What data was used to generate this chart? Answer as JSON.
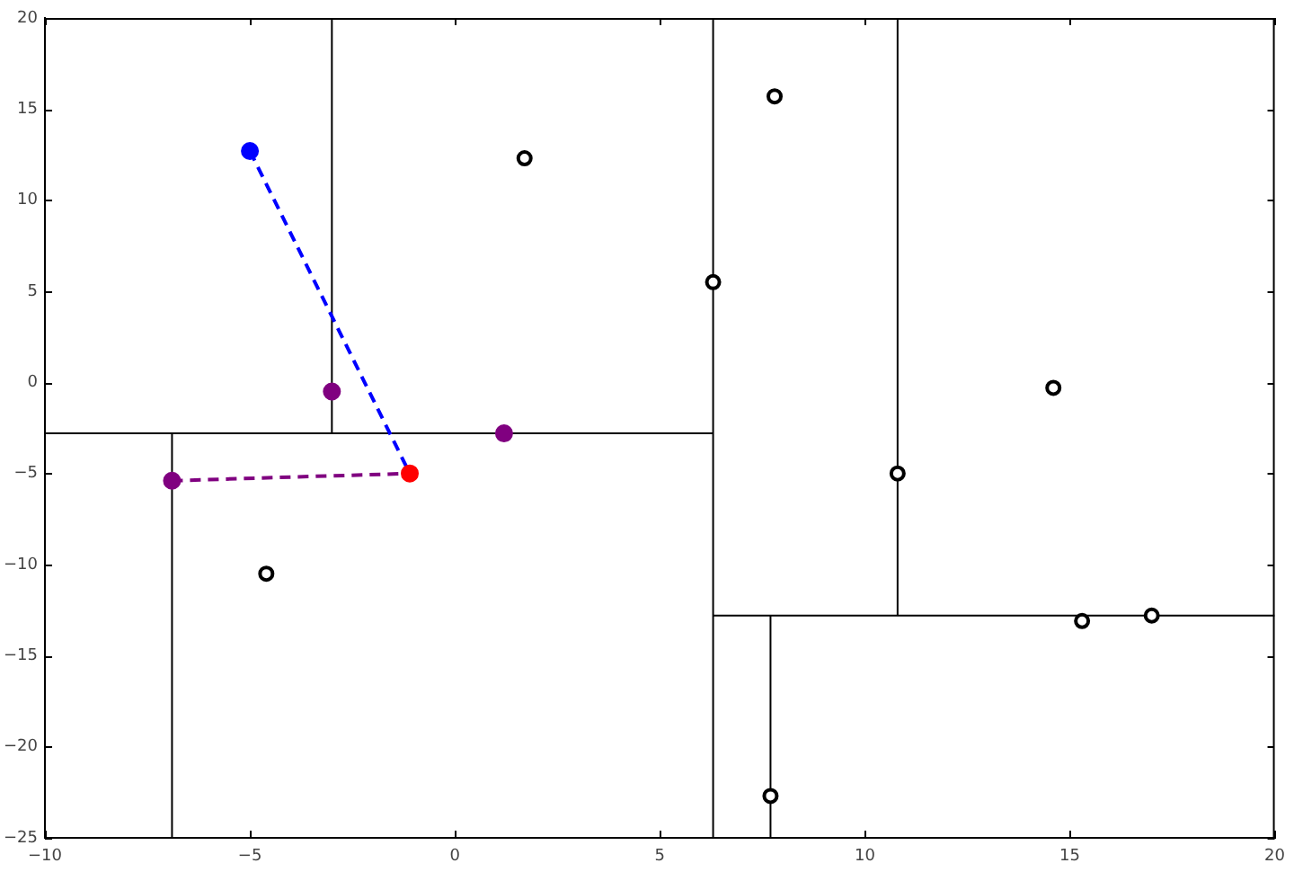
{
  "chart_data": {
    "type": "scatter",
    "xlim": [
      -10,
      20
    ],
    "ylim": [
      -25,
      20
    ],
    "xticks": [
      -10,
      -5,
      0,
      5,
      10,
      15,
      20
    ],
    "yticks": [
      -25,
      -20,
      -15,
      -10,
      -5,
      0,
      5,
      10,
      15,
      20
    ],
    "marker": "circle",
    "series": [
      {
        "type": "line",
        "color": "#000000",
        "marker": "none",
        "x": [
          6.3,
          6.3
        ],
        "values": [
          -25,
          20
        ]
      },
      {
        "type": "line",
        "color": "#000000",
        "marker": "none",
        "x": [
          -10,
          6.3
        ],
        "values": [
          -2.8,
          -2.8
        ]
      },
      {
        "type": "line",
        "color": "#000000",
        "marker": "none",
        "x": [
          -3.0,
          -3.0
        ],
        "values": [
          -2.8,
          20
        ]
      },
      {
        "type": "line",
        "color": "#000000",
        "marker": "none",
        "x": [
          -6.9,
          -6.9
        ],
        "values": [
          -25,
          -2.8
        ]
      },
      {
        "type": "line",
        "color": "#000000",
        "marker": "none",
        "x": [
          6.3,
          20
        ],
        "values": [
          -12.8,
          -12.8
        ]
      },
      {
        "type": "line",
        "color": "#000000",
        "marker": "none",
        "x": [
          10.8,
          10.8
        ],
        "values": [
          -12.8,
          20
        ]
      },
      {
        "type": "line",
        "color": "#000000",
        "marker": "none",
        "x": [
          7.7,
          7.7
        ],
        "values": [
          -25,
          -12.8
        ]
      },
      {
        "type": "line",
        "color": "#0000ff",
        "marker": "none",
        "line_style": "dashed",
        "x": [
          -5.0,
          -1.1
        ],
        "values": [
          12.7,
          -5.0
        ]
      },
      {
        "type": "line",
        "color": "#800080",
        "marker": "none",
        "line_style": "dashed",
        "x": [
          -6.9,
          -1.1
        ],
        "values": [
          -5.4,
          -5.0
        ]
      },
      {
        "type": "scatter",
        "color": "#000000",
        "x": [
          1.7,
          7.8,
          6.3,
          14.6,
          10.8,
          -4.6,
          15.3,
          17.0,
          7.7
        ],
        "values": [
          12.3,
          15.7,
          5.5,
          -0.3,
          -5.0,
          -10.5,
          -13.1,
          -12.8,
          -22.7
        ]
      },
      {
        "type": "scatter",
        "color": "#800080",
        "x": [
          -3.0,
          1.2,
          -6.9
        ],
        "values": [
          -0.5,
          -2.8,
          -5.4
        ]
      },
      {
        "type": "scatter",
        "color": "#0000ff",
        "x": [
          -5.0
        ],
        "values": [
          12.7
        ]
      },
      {
        "type": "scatter",
        "color": "#ff0000",
        "x": [
          -1.1
        ],
        "values": [
          -5.0
        ]
      }
    ]
  }
}
